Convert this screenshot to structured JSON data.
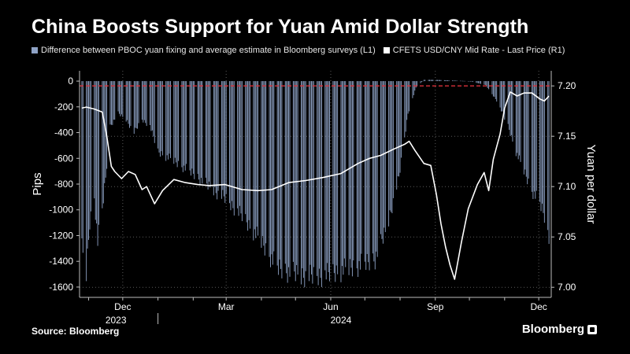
{
  "chart_data": {
    "type": "bar+line",
    "title": "China Boosts Support for Yuan Amid Dollar Strength",
    "series": [
      {
        "name": "Difference between PBOC yuan fixing and average estimate in Bloomberg surveys (L1)",
        "type": "bar",
        "axis": "left",
        "color": "#8fa3c6",
        "anchors": [
          [
            "2023-10-26",
            -1300
          ],
          [
            "2023-10-30",
            -1500
          ],
          [
            "2023-11-02",
            -1100
          ],
          [
            "2023-11-06",
            -900
          ],
          [
            "2023-11-09",
            -1250
          ],
          [
            "2023-11-13",
            -1000
          ],
          [
            "2023-11-16",
            -750
          ],
          [
            "2023-11-20",
            -350
          ],
          [
            "2023-11-27",
            -250
          ],
          [
            "2023-12-04",
            -300
          ],
          [
            "2023-12-11",
            -400
          ],
          [
            "2023-12-18",
            -300
          ],
          [
            "2023-12-25",
            -350
          ],
          [
            "2024-01-01",
            -550
          ],
          [
            "2024-01-15",
            -620
          ],
          [
            "2024-02-01",
            -720
          ],
          [
            "2024-02-15",
            -820
          ],
          [
            "2024-03-01",
            -920
          ],
          [
            "2024-03-15",
            -1050
          ],
          [
            "2024-04-01",
            -1250
          ],
          [
            "2024-04-15",
            -1450
          ],
          [
            "2024-05-01",
            -1500
          ],
          [
            "2024-05-15",
            -1520
          ],
          [
            "2024-06-01",
            -1500
          ],
          [
            "2024-06-15",
            -1460
          ],
          [
            "2024-07-01",
            -1420
          ],
          [
            "2024-07-10",
            -1380
          ],
          [
            "2024-07-20",
            -1150
          ],
          [
            "2024-07-31",
            -750
          ],
          [
            "2024-08-08",
            -250
          ],
          [
            "2024-08-15",
            -50
          ],
          [
            "2024-08-22",
            10
          ],
          [
            "2024-09-01",
            10
          ],
          [
            "2024-10-01",
            0
          ],
          [
            "2024-10-15",
            -30
          ],
          [
            "2024-10-25",
            -150
          ],
          [
            "2024-11-04",
            -350
          ],
          [
            "2024-11-11",
            -550
          ],
          [
            "2024-11-18",
            -700
          ],
          [
            "2024-11-25",
            -850
          ],
          [
            "2024-12-02",
            -950
          ],
          [
            "2024-12-06",
            -1050
          ],
          [
            "2024-12-10",
            -1250
          ]
        ]
      },
      {
        "name": "CFETS USD/CNY Mid Rate - Last Price (R1)",
        "type": "line",
        "axis": "right",
        "color": "#ffffff",
        "anchors": [
          [
            "2023-10-26",
            7.178
          ],
          [
            "2023-10-30",
            7.179
          ],
          [
            "2023-11-06",
            7.177
          ],
          [
            "2023-11-13",
            7.174
          ],
          [
            "2023-11-17",
            7.15
          ],
          [
            "2023-11-21",
            7.12
          ],
          [
            "2023-11-24",
            7.115
          ],
          [
            "2023-11-30",
            7.108
          ],
          [
            "2023-12-06",
            7.115
          ],
          [
            "2023-12-12",
            7.112
          ],
          [
            "2023-12-18",
            7.097
          ],
          [
            "2023-12-22",
            7.1
          ],
          [
            "2023-12-29",
            7.083
          ],
          [
            "2024-01-05",
            7.096
          ],
          [
            "2024-01-15",
            7.107
          ],
          [
            "2024-01-25",
            7.104
          ],
          [
            "2024-02-05",
            7.102
          ],
          [
            "2024-02-15",
            7.101
          ],
          [
            "2024-02-29",
            7.102
          ],
          [
            "2024-03-15",
            7.097
          ],
          [
            "2024-03-29",
            7.096
          ],
          [
            "2024-04-10",
            7.097
          ],
          [
            "2024-04-25",
            7.104
          ],
          [
            "2024-05-10",
            7.106
          ],
          [
            "2024-05-25",
            7.109
          ],
          [
            "2024-06-10",
            7.113
          ],
          [
            "2024-06-25",
            7.123
          ],
          [
            "2024-07-05",
            7.128
          ],
          [
            "2024-07-15",
            7.131
          ],
          [
            "2024-07-26",
            7.137
          ],
          [
            "2024-08-05",
            7.142
          ],
          [
            "2024-08-09",
            7.145
          ],
          [
            "2024-08-14",
            7.136
          ],
          [
            "2024-08-22",
            7.123
          ],
          [
            "2024-08-28",
            7.121
          ],
          [
            "2024-09-02",
            7.092
          ],
          [
            "2024-09-06",
            7.063
          ],
          [
            "2024-09-10",
            7.04
          ],
          [
            "2024-09-14",
            7.022
          ],
          [
            "2024-09-18",
            7.008
          ],
          [
            "2024-09-24",
            7.045
          ],
          [
            "2024-09-30",
            7.078
          ],
          [
            "2024-10-08",
            7.102
          ],
          [
            "2024-10-14",
            7.114
          ],
          [
            "2024-10-18",
            7.096
          ],
          [
            "2024-10-22",
            7.127
          ],
          [
            "2024-10-28",
            7.152
          ],
          [
            "2024-11-01",
            7.178
          ],
          [
            "2024-11-06",
            7.194
          ],
          [
            "2024-11-12",
            7.19
          ],
          [
            "2024-11-18",
            7.193
          ],
          [
            "2024-11-25",
            7.193
          ],
          [
            "2024-12-02",
            7.187
          ],
          [
            "2024-12-06",
            7.185
          ],
          [
            "2024-12-10",
            7.19
          ]
        ]
      }
    ],
    "x_range": [
      "2023-10-24",
      "2024-12-12"
    ],
    "x_ticks": [
      {
        "date": "2023-12-01",
        "label": "Dec"
      },
      {
        "date": "2024-03-01",
        "label": "Mar"
      },
      {
        "date": "2024-06-01",
        "label": "Jun"
      },
      {
        "date": "2024-09-01",
        "label": "Sep"
      },
      {
        "date": "2024-12-01",
        "label": "Dec"
      }
    ],
    "year_labels": [
      {
        "date": "2023-11-25",
        "label": "2023"
      },
      {
        "date": "2024-06-10",
        "label": "2024"
      }
    ],
    "year_boundary": "2024-01-01",
    "left_axis": {
      "label": "Pips",
      "ylim": [
        -1680,
        80
      ],
      "ticks": [
        0,
        -200,
        -400,
        -600,
        -800,
        -1000,
        -1200,
        -1400,
        -1600
      ],
      "tick_labels": [
        "0",
        "-200",
        "-400",
        "-600",
        "-800",
        "-1000",
        "-1200",
        "-1400",
        "-1600"
      ]
    },
    "right_axis": {
      "label": "Yuan per dollar",
      "ylim": [
        6.99,
        7.215
      ],
      "ticks": [
        7.2,
        7.15,
        7.1,
        7.05,
        7.0
      ],
      "tick_labels": [
        "7.20",
        "7.15",
        "7.10",
        "7.05",
        "7.00"
      ]
    },
    "reference_line": {
      "axis": "right",
      "value": 7.2,
      "color": "#d9303a",
      "style": "dashed"
    },
    "grid": true,
    "legend_position": "top-left"
  },
  "footer": {
    "source": "Source: Bloomberg",
    "brand": "Bloomberg"
  },
  "colors": {
    "background": "#000000",
    "bars": "#8fa3c6",
    "line": "#ffffff",
    "reference": "#d9303a",
    "grid": "#5a5a5a"
  }
}
